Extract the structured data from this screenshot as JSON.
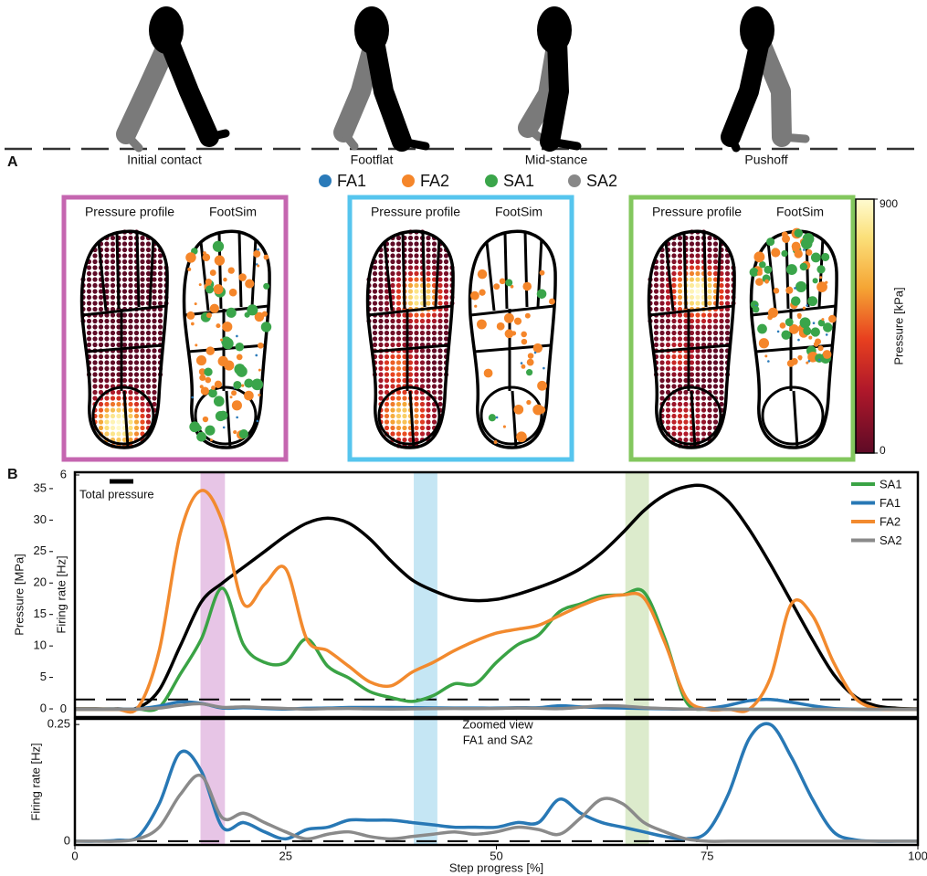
{
  "panel_labels": [
    "A",
    "B"
  ],
  "gait_phases": [
    "Initial contact",
    "Footflat",
    "Mid-stance",
    "Pushoff"
  ],
  "legend": [
    {
      "name": "FA1",
      "color": "#2a7ab9"
    },
    {
      "name": "FA2",
      "color": "#f5862a"
    },
    {
      "name": "SA1",
      "color": "#3aa54a"
    },
    {
      "name": "SA2",
      "color": "#888888"
    }
  ],
  "foot_panels": [
    {
      "left_title": "Pressure profile",
      "right_title": "FootSim",
      "border": "#c566b0"
    },
    {
      "left_title": "Pressure profile",
      "right_title": "FootSim",
      "border": "#56c5ee"
    },
    {
      "left_title": "Pressure profile",
      "right_title": "FootSim",
      "border": "#83c75e"
    }
  ],
  "colorbar": {
    "label": "Pressure [kPa]",
    "lim": [
      0,
      900
    ],
    "ticks": [
      0,
      900
    ]
  },
  "chart_data": [
    {
      "type": "line",
      "ylabel": "Pressure [MPa]",
      "y2label": "Firing rate [Hz]",
      "xlim": [
        0,
        100
      ],
      "ylim": [
        -1.3,
        37.6
      ],
      "yticks": [
        0,
        5,
        10,
        15,
        20,
        25,
        30,
        35
      ],
      "y2lim": [
        -0.2,
        6.07
      ],
      "y2ticks": [
        0,
        6
      ],
      "legend": "upper right",
      "x": [
        0,
        2.5,
        5,
        7.5,
        10,
        12.5,
        15,
        17.5,
        20,
        22.5,
        25,
        27.5,
        30,
        32.5,
        35,
        37.5,
        40,
        42.5,
        45,
        47.5,
        50,
        52.5,
        55,
        57.5,
        60,
        62.5,
        65,
        67.5,
        70,
        72.5,
        75,
        77.5,
        80,
        82.5,
        85,
        87.5,
        90,
        92.5,
        95,
        97.5,
        100
      ],
      "series": [
        {
          "name": "Total pressure",
          "color": "#000000",
          "axis": "y",
          "values": [
            0,
            0,
            0,
            0.2,
            3,
            10,
            17,
            20,
            22.5,
            25,
            27.5,
            29.5,
            30.3,
            29.5,
            27,
            23.5,
            20.5,
            18.8,
            17.6,
            17.2,
            17.4,
            18.2,
            19.3,
            20.6,
            22.3,
            24.8,
            28,
            31.5,
            34,
            35.3,
            35.3,
            33,
            28.5,
            23,
            17,
            11,
            5.5,
            2,
            0.5,
            0.1,
            0
          ]
        },
        {
          "name": "SA1",
          "color": "#3aa345",
          "axis": "y2",
          "values": [
            0,
            0,
            0,
            0,
            0.05,
            0.9,
            1.8,
            3.1,
            1.65,
            1.2,
            1.2,
            1.8,
            1.1,
            0.8,
            0.45,
            0.3,
            0.2,
            0.35,
            0.65,
            0.65,
            1.2,
            1.65,
            1.9,
            2.5,
            2.7,
            2.9,
            2.93,
            3.0,
            1.8,
            0.2,
            0,
            0,
            0,
            0,
            0,
            0,
            0,
            0,
            0,
            0,
            0
          ]
        },
        {
          "name": "FA1",
          "color": "#2878b5",
          "axis": "y2",
          "values": [
            0,
            0,
            0.002,
            0.01,
            0.08,
            0.19,
            0.15,
            0.03,
            0.04,
            0.02,
            0.005,
            0.025,
            0.03,
            0.045,
            0.045,
            0.045,
            0.04,
            0.035,
            0.03,
            0.03,
            0.03,
            0.04,
            0.04,
            0.09,
            0.06,
            0.04,
            0.03,
            0.02,
            0.01,
            0.005,
            0.02,
            0.1,
            0.22,
            0.25,
            0.18,
            0.09,
            0.02,
            0.003,
            0,
            0,
            0
          ]
        },
        {
          "name": "FA2",
          "color": "#f28a2e",
          "axis": "y2",
          "values": [
            0,
            0,
            0,
            0.05,
            1.5,
            4.5,
            5.6,
            4.8,
            2.7,
            3.2,
            3.6,
            1.8,
            1.5,
            1.1,
            0.7,
            0.6,
            0.95,
            1.2,
            1.5,
            1.75,
            1.95,
            2.05,
            2.15,
            2.4,
            2.65,
            2.85,
            2.93,
            2.85,
            1.7,
            0.3,
            0,
            0,
            0,
            0.8,
            2.7,
            2.4,
            1.2,
            0.3,
            0.02,
            0,
            0
          ]
        },
        {
          "name": "SA2",
          "color": "#8a8a8a",
          "axis": "y2",
          "values": [
            0,
            0,
            0,
            0.005,
            0.03,
            0.1,
            0.14,
            0.05,
            0.06,
            0.04,
            0.02,
            0.005,
            0.015,
            0.02,
            0.01,
            0.005,
            0.01,
            0.015,
            0.02,
            0.015,
            0.02,
            0.03,
            0.025,
            0.015,
            0.05,
            0.09,
            0.08,
            0.04,
            0.02,
            0.005,
            0,
            0,
            0,
            0,
            0,
            0,
            0,
            0,
            0,
            0,
            0
          ]
        }
      ],
      "highlights": [
        {
          "x": [
            14.9,
            17.8
          ],
          "color": "#e7c5e6"
        },
        {
          "x": [
            40.2,
            43.0
          ],
          "color": "#c5e6f4"
        },
        {
          "x": [
            65.3,
            68.1
          ],
          "color": "#dcebcc"
        }
      ]
    },
    {
      "type": "line",
      "annotation": [
        "Zoomed view",
        "FA1 and SA2"
      ],
      "xlabel": "Step progress [%]",
      "ylabel": "Firing rate [Hz]",
      "xlim": [
        0,
        100
      ],
      "xticks": [
        0,
        25,
        50,
        75,
        100
      ],
      "ylim": [
        -0.008,
        0.262
      ],
      "yticks": [
        0,
        0.25
      ]
    }
  ]
}
